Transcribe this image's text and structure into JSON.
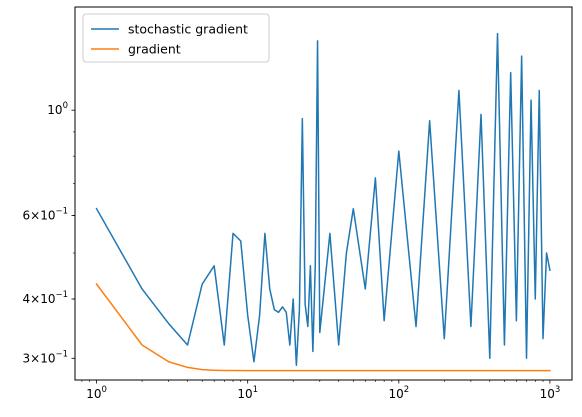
{
  "chart_data": {
    "type": "line",
    "title": "",
    "xlabel": "",
    "ylabel": "",
    "x_scale": "log",
    "y_scale": "log",
    "xlim": [
      0.72,
      1400
    ],
    "ylim": [
      0.27,
      1.65
    ],
    "grid": false,
    "legend_position": "top-left",
    "x_ticks": [
      {
        "value": 1,
        "base": "10",
        "exp": "0"
      },
      {
        "value": 10,
        "base": "10",
        "exp": "1"
      },
      {
        "value": 100,
        "base": "10",
        "exp": "2"
      },
      {
        "value": 1000,
        "base": "10",
        "exp": "3"
      }
    ],
    "y_ticks": [
      {
        "value": 0.3,
        "mant": "3",
        "base": "10",
        "exp": "−1"
      },
      {
        "value": 0.4,
        "mant": "4",
        "base": "10",
        "exp": "−1"
      },
      {
        "value": 0.6,
        "mant": "6",
        "base": "10",
        "exp": "−1"
      },
      {
        "value": 1.0,
        "mant": "",
        "base": "10",
        "exp": "0"
      }
    ],
    "series": [
      {
        "name": "stochastic gradient",
        "color": "#1f77b4",
        "x": [
          1,
          2,
          3,
          4,
          5,
          6,
          7,
          8,
          9,
          10,
          11,
          12,
          13,
          14,
          15,
          16,
          17,
          18,
          19,
          20,
          21,
          22,
          23,
          24,
          25,
          26,
          27,
          28,
          29,
          30,
          35,
          40,
          45,
          50,
          60,
          70,
          80,
          100,
          130,
          160,
          200,
          250,
          300,
          350,
          400,
          450,
          500,
          550,
          600,
          650,
          700,
          750,
          800,
          850,
          900,
          950,
          1000
        ],
        "y": [
          0.62,
          0.42,
          0.355,
          0.32,
          0.43,
          0.47,
          0.32,
          0.55,
          0.53,
          0.37,
          0.295,
          0.37,
          0.55,
          0.42,
          0.38,
          0.375,
          0.385,
          0.375,
          0.32,
          0.4,
          0.29,
          0.38,
          0.96,
          0.39,
          0.35,
          0.47,
          0.31,
          0.47,
          1.4,
          0.34,
          0.55,
          0.32,
          0.5,
          0.62,
          0.42,
          0.72,
          0.36,
          0.82,
          0.35,
          0.95,
          0.33,
          1.1,
          0.35,
          0.98,
          0.3,
          1.45,
          0.32,
          1.2,
          0.36,
          1.3,
          0.3,
          1.05,
          0.4,
          1.1,
          0.33,
          0.5,
          0.46
        ]
      },
      {
        "name": "gradient",
        "color": "#ff7f0e",
        "x": [
          1,
          2,
          3,
          4,
          5,
          6,
          7,
          8,
          10,
          20,
          50,
          100,
          1000
        ],
        "y": [
          0.43,
          0.32,
          0.295,
          0.287,
          0.284,
          0.283,
          0.2828,
          0.2827,
          0.2826,
          0.2826,
          0.2826,
          0.2826,
          0.2826
        ]
      }
    ]
  }
}
